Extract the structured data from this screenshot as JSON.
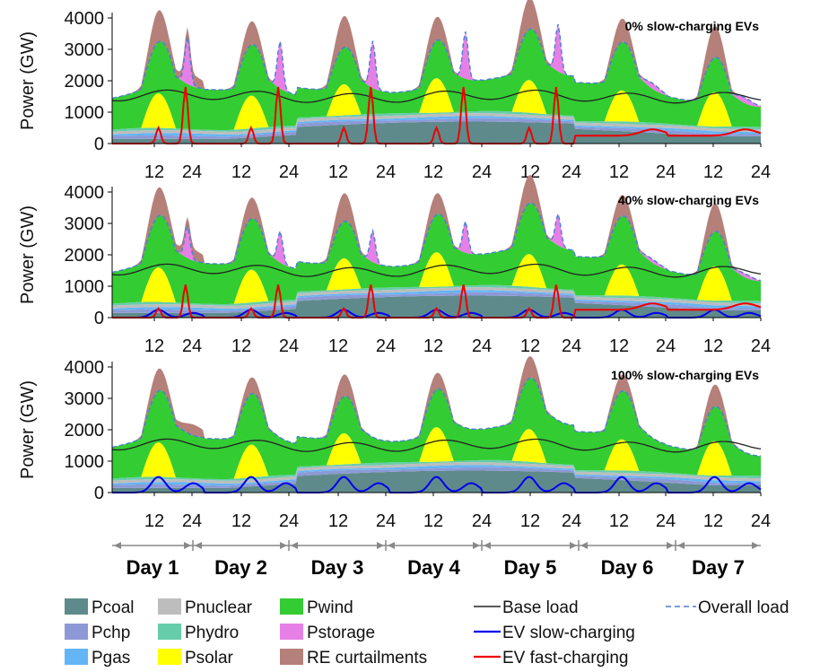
{
  "chart_data": {
    "type": "area",
    "ylabel": "Power (GW)",
    "xlabel": "",
    "ylim": [
      0,
      4000
    ],
    "yticks": [
      0,
      1000,
      2000,
      3000,
      4000
    ],
    "xlim": [
      0,
      168
    ],
    "xtick_labels": [
      "12",
      "24",
      "12",
      "24",
      "12",
      "24",
      "12",
      "24",
      "12",
      "24",
      "12",
      "24",
      "12",
      "24"
    ],
    "days": [
      "Day 1",
      "Day 2",
      "Day 3",
      "Day 4",
      "Day 5",
      "Day 6",
      "Day 7"
    ],
    "legend": [
      {
        "key": "pcoal",
        "label": "Pcoal",
        "color": "#5f8a8b",
        "kind": "fill"
      },
      {
        "key": "pchp",
        "label": "Pchp",
        "color": "#8d99d6",
        "kind": "fill"
      },
      {
        "key": "pgas",
        "label": "Pgas",
        "color": "#63b5f5",
        "kind": "fill"
      },
      {
        "key": "pnuclear",
        "label": "Pnuclear",
        "color": "#bdbdbd",
        "kind": "fill"
      },
      {
        "key": "phydro",
        "label": "Phydro",
        "color": "#66cdaa",
        "kind": "fill"
      },
      {
        "key": "psolar",
        "label": "Psolar",
        "color": "#ffff00",
        "kind": "fill"
      },
      {
        "key": "pwind",
        "label": "Pwind",
        "color": "#33cc33",
        "kind": "fill"
      },
      {
        "key": "pstorage",
        "label": "Pstorage",
        "color": "#e680e6",
        "kind": "fill"
      },
      {
        "key": "curtail",
        "label": "RE curtailments",
        "color": "#b5807a",
        "kind": "fill"
      },
      {
        "key": "base",
        "label": "Base load",
        "color": "#222222",
        "kind": "line"
      },
      {
        "key": "evslow",
        "label": "EV slow-charging",
        "color": "#0000ee",
        "kind": "line"
      },
      {
        "key": "evfast",
        "label": "EV fast-charging",
        "color": "#ee0000",
        "kind": "line"
      },
      {
        "key": "overall",
        "label": "Overall load",
        "color": "#4a7fd4",
        "kind": "dash"
      }
    ],
    "panels": [
      {
        "title": "0% slow-charging EVs",
        "slow_share": 0,
        "slow_peak": 0,
        "fast_peak": 1800,
        "storage_peak": 1500,
        "curtail_peak": 1000
      },
      {
        "title": "40% slow-charging EVs",
        "slow_share": 0.4,
        "slow_peak": 250,
        "fast_peak": 1050,
        "storage_peak": 1000,
        "curtail_peak": 900
      },
      {
        "title": "100% slow-charging EVs",
        "slow_share": 1,
        "slow_peak": 500,
        "fast_peak": 0,
        "storage_peak": 0,
        "curtail_peak": 700
      }
    ]
  }
}
